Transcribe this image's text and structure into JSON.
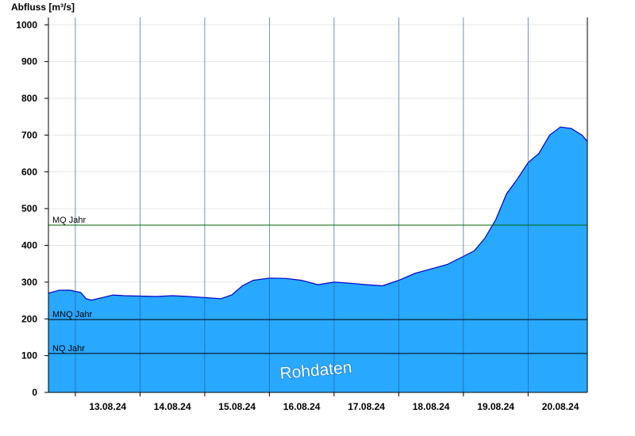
{
  "chart_data": {
    "type": "area",
    "ylabel": "Abfluss [m³/s]",
    "ylim": [
      0,
      1020
    ],
    "y_ticks": [
      0,
      100,
      200,
      300,
      400,
      500,
      600,
      700,
      800,
      900,
      1000
    ],
    "x_start": "2024-08-12T14:00",
    "x_end": "2024-08-20T22:00",
    "day_boundaries": [
      "2024-08-13T00:00",
      "2024-08-14T00:00",
      "2024-08-15T00:00",
      "2024-08-16T00:00",
      "2024-08-17T00:00",
      "2024-08-18T00:00",
      "2024-08-19T00:00",
      "2024-08-20T00:00"
    ],
    "x_tick_labels": [
      {
        "date": "2024-08-13T12:00",
        "label": "13.08.24"
      },
      {
        "date": "2024-08-14T12:00",
        "label": "14.08.24"
      },
      {
        "date": "2024-08-15T12:00",
        "label": "15.08.24"
      },
      {
        "date": "2024-08-16T12:00",
        "label": "16.08.24"
      },
      {
        "date": "2024-08-17T12:00",
        "label": "17.08.24"
      },
      {
        "date": "2024-08-18T12:00",
        "label": "18.08.24"
      },
      {
        "date": "2024-08-19T12:00",
        "label": "19.08.24"
      },
      {
        "date": "2024-08-20T12:00",
        "label": "20.08.24"
      }
    ],
    "series": [
      {
        "x": [
          "2024-08-12T14:00",
          "2024-08-12T18:00",
          "2024-08-12T22:00",
          "2024-08-13T02:00",
          "2024-08-13T04:00",
          "2024-08-13T06:00",
          "2024-08-13T10:00",
          "2024-08-13T14:00",
          "2024-08-13T18:00",
          "2024-08-14T00:00",
          "2024-08-14T06:00",
          "2024-08-14T12:00",
          "2024-08-14T18:00",
          "2024-08-15T00:00",
          "2024-08-15T06:00",
          "2024-08-15T10:00",
          "2024-08-15T14:00",
          "2024-08-15T18:00",
          "2024-08-16T00:00",
          "2024-08-16T06:00",
          "2024-08-16T12:00",
          "2024-08-16T18:00",
          "2024-08-17T00:00",
          "2024-08-17T06:00",
          "2024-08-17T12:00",
          "2024-08-17T18:00",
          "2024-08-18T00:00",
          "2024-08-18T06:00",
          "2024-08-18T12:00",
          "2024-08-18T18:00",
          "2024-08-19T00:00",
          "2024-08-19T04:00",
          "2024-08-19T08:00",
          "2024-08-19T12:00",
          "2024-08-19T16:00",
          "2024-08-19T20:00",
          "2024-08-20T00:00",
          "2024-08-20T04:00",
          "2024-08-20T08:00",
          "2024-08-20T12:00",
          "2024-08-20T16:00",
          "2024-08-20T20:00",
          "2024-08-20T22:00"
        ],
        "values": [
          270,
          278,
          278,
          272,
          255,
          251,
          258,
          265,
          263,
          262,
          261,
          263,
          261,
          258,
          255,
          265,
          290,
          305,
          311,
          310,
          305,
          293,
          300,
          297,
          293,
          290,
          305,
          324,
          336,
          348,
          370,
          385,
          420,
          470,
          540,
          580,
          625,
          650,
          700,
          722,
          718,
          700,
          683
        ]
      }
    ],
    "reference_lines": [
      {
        "label": "MQ Jahr",
        "value": 455,
        "color": "#006400"
      },
      {
        "label": "MNQ Jahr",
        "value": 198,
        "color": "#000000"
      },
      {
        "label": "NQ Jahr",
        "value": 106,
        "color": "#000000"
      }
    ],
    "watermark": "Rohdaten",
    "fill_color": "#29a8ff",
    "line_color": "#0000cc",
    "grid": true
  }
}
